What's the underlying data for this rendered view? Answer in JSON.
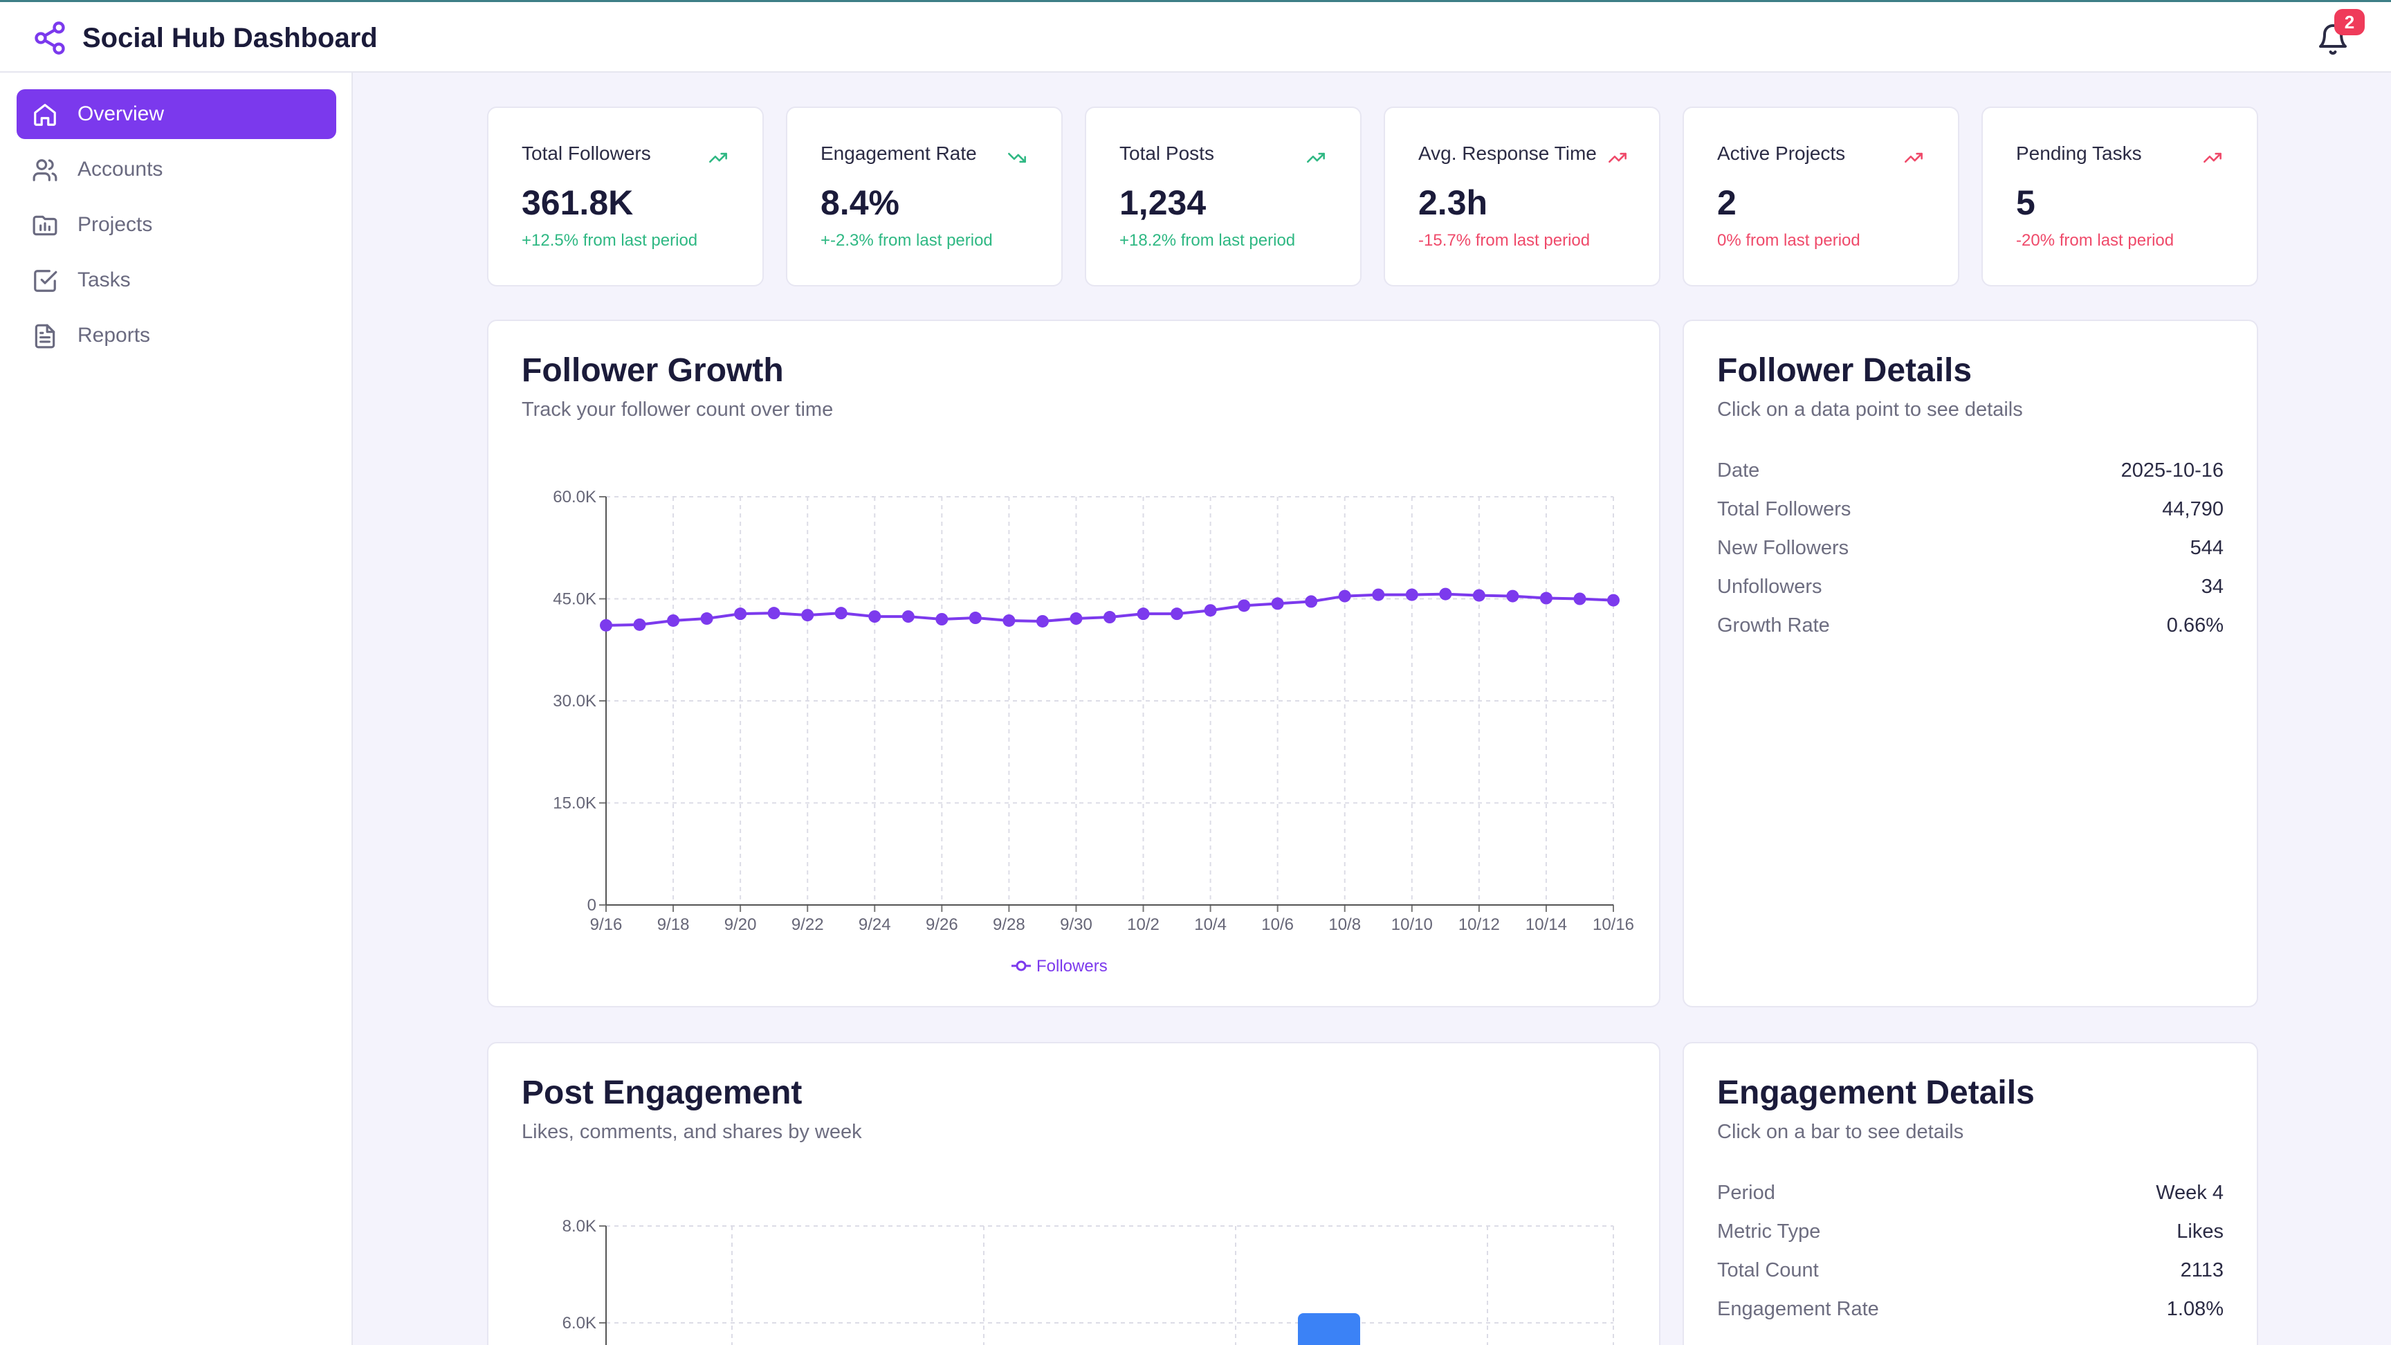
{
  "app": {
    "title": "Social Hub Dashboard",
    "notification_count": "2"
  },
  "sidebar": {
    "items": [
      {
        "label": "Overview",
        "icon": "home-icon",
        "active": true
      },
      {
        "label": "Accounts",
        "icon": "users-icon",
        "active": false
      },
      {
        "label": "Projects",
        "icon": "folder-chart-icon",
        "active": false
      },
      {
        "label": "Tasks",
        "icon": "checkbox-icon",
        "active": false
      },
      {
        "label": "Reports",
        "icon": "document-icon",
        "active": false
      }
    ]
  },
  "stats": [
    {
      "label": "Total Followers",
      "value": "361.8K",
      "change": "+12.5% from last period",
      "trend": "up",
      "color": "#2fb883"
    },
    {
      "label": "Engagement Rate",
      "value": "8.4%",
      "change": "+-2.3% from last period",
      "trend": "down",
      "color": "#2fb883"
    },
    {
      "label": "Total Posts",
      "value": "1,234",
      "change": "+18.2% from last period",
      "trend": "up",
      "color": "#2fb883"
    },
    {
      "label": "Avg. Response Time",
      "value": "2.3h",
      "change": "-15.7% from last period",
      "trend": "up",
      "color": "#ef4a6a"
    },
    {
      "label": "Active Projects",
      "value": "2",
      "change": "0% from last period",
      "trend": "up",
      "color": "#ef4a6a"
    },
    {
      "label": "Pending Tasks",
      "value": "5",
      "change": "-20% from last period",
      "trend": "up",
      "color": "#ef4a6a"
    }
  ],
  "follower_growth": {
    "title": "Follower Growth",
    "subtitle": "Track your follower count over time"
  },
  "follower_details": {
    "title": "Follower Details",
    "subtitle": "Click on a data point to see details",
    "rows": [
      {
        "key": "Date",
        "value": "2025-10-16"
      },
      {
        "key": "Total Followers",
        "value": "44,790"
      },
      {
        "key": "New Followers",
        "value": "544"
      },
      {
        "key": "Unfollowers",
        "value": "34"
      },
      {
        "key": "Growth Rate",
        "value": "0.66%"
      }
    ]
  },
  "post_engagement": {
    "title": "Post Engagement",
    "subtitle": "Likes, comments, and shares by week"
  },
  "engagement_details": {
    "title": "Engagement Details",
    "subtitle": "Click on a bar to see details",
    "rows": [
      {
        "key": "Period",
        "value": "Week 4"
      },
      {
        "key": "Metric Type",
        "value": "Likes"
      },
      {
        "key": "Total Count",
        "value": "2113"
      },
      {
        "key": "Engagement Rate",
        "value": "1.08%"
      }
    ]
  },
  "colors": {
    "accent": "#7b39ed",
    "line": "#7c3aed",
    "bar": "#3b82f6"
  },
  "chart_data": [
    {
      "type": "line",
      "title": "",
      "x": [
        "9/16",
        "9/17",
        "9/18",
        "9/19",
        "9/20",
        "9/21",
        "9/22",
        "9/23",
        "9/24",
        "9/25",
        "9/26",
        "9/27",
        "9/28",
        "9/29",
        "9/30",
        "10/1",
        "10/2",
        "10/3",
        "10/4",
        "10/5",
        "10/6",
        "10/7",
        "10/8",
        "10/9",
        "10/10",
        "10/11",
        "10/12",
        "10/13",
        "10/14",
        "10/15",
        "10/16"
      ],
      "x_tick_labels": [
        "9/16",
        "9/18",
        "9/20",
        "9/22",
        "9/24",
        "9/26",
        "9/28",
        "9/30",
        "10/2",
        "10/4",
        "10/6",
        "10/8",
        "10/10",
        "10/12",
        "10/14",
        "10/16"
      ],
      "series": [
        {
          "name": "Followers",
          "values": [
            41100,
            41200,
            41800,
            42100,
            42800,
            42900,
            42600,
            42900,
            42400,
            42400,
            42000,
            42200,
            41800,
            41700,
            42100,
            42300,
            42800,
            42800,
            43300,
            44000,
            44300,
            44600,
            45400,
            45600,
            45600,
            45700,
            45500,
            45400,
            45100,
            45000,
            44790
          ]
        }
      ],
      "y_ticks": [
        "0",
        "15.0K",
        "30.0K",
        "45.0K",
        "60.0K"
      ],
      "ylim": [
        0,
        60000
      ],
      "grid": true,
      "legend": "bottom"
    },
    {
      "type": "bar",
      "y_ticks": [
        "6.0K",
        "8.0K"
      ],
      "ylim": [
        0,
        8000
      ],
      "grid": true,
      "bars_visible": [
        {
          "x_index": 3,
          "value": 6200
        }
      ]
    }
  ]
}
